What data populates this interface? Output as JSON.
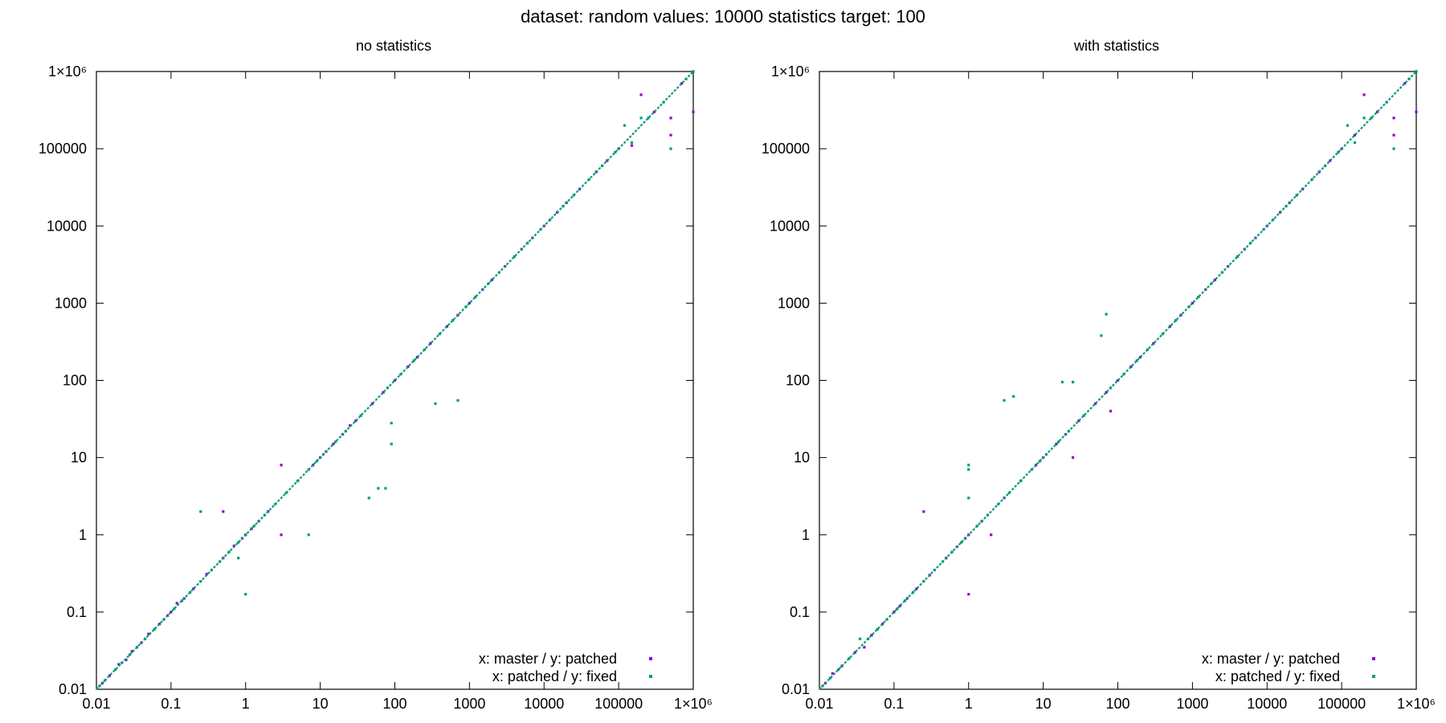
{
  "figure": {
    "title": "dataset: random  values: 10000  statistics target: 100"
  },
  "colors": {
    "series_master_patched": "#9400d3",
    "series_patched_fixed": "#009e73"
  },
  "chart_data": [
    {
      "type": "scatter",
      "title": "no statistics",
      "xscale": "log",
      "yscale": "log",
      "xlim": [
        0.01,
        1000000
      ],
      "ylim": [
        0.01,
        1000000
      ],
      "xticks": [
        0.01,
        0.1,
        1,
        10,
        100,
        1000,
        10000,
        100000,
        1000000
      ],
      "yticks": [
        0.01,
        0.1,
        1,
        10,
        100,
        1000,
        10000,
        100000,
        1000000
      ],
      "tick_labels": [
        "0.01",
        "0.1",
        "1",
        "10",
        "100",
        "1000",
        "10000",
        "100000",
        "1×10⁶"
      ],
      "legend_position": "bottom-right",
      "series": [
        {
          "name": "x: master / y: patched",
          "color": "#9400d3",
          "points": [
            [
              0.012,
              0.012
            ],
            [
              0.015,
              0.015
            ],
            [
              0.02,
              0.021
            ],
            [
              0.025,
              0.024
            ],
            [
              0.03,
              0.031
            ],
            [
              0.04,
              0.04
            ],
            [
              0.05,
              0.052
            ],
            [
              0.07,
              0.07
            ],
            [
              0.09,
              0.09
            ],
            [
              0.1,
              0.1
            ],
            [
              0.12,
              0.13
            ],
            [
              0.15,
              0.15
            ],
            [
              0.2,
              0.2
            ],
            [
              0.3,
              0.31
            ],
            [
              0.5,
              0.5
            ],
            [
              0.7,
              0.72
            ],
            [
              0.9,
              0.9
            ],
            [
              1,
              1
            ],
            [
              1.2,
              1.2
            ],
            [
              1.5,
              1.5
            ],
            [
              2,
              2
            ],
            [
              0.5,
              2
            ],
            [
              3,
              1
            ],
            [
              3,
              8
            ],
            [
              5,
              5
            ],
            [
              8,
              8
            ],
            [
              10,
              10
            ],
            [
              12,
              12
            ],
            [
              15,
              15
            ],
            [
              20,
              20
            ],
            [
              25,
              26
            ],
            [
              30,
              30
            ],
            [
              50,
              50
            ],
            [
              70,
              70
            ],
            [
              100,
              100
            ],
            [
              150,
              150
            ],
            [
              200,
              200
            ],
            [
              300,
              300
            ],
            [
              500,
              500
            ],
            [
              700,
              700
            ],
            [
              1000,
              1000
            ],
            [
              1500,
              1500
            ],
            [
              2000,
              2000
            ],
            [
              3000,
              3000
            ],
            [
              5000,
              5000
            ],
            [
              7000,
              7000
            ],
            [
              10000,
              10000
            ],
            [
              15000,
              15000
            ],
            [
              20000,
              20000
            ],
            [
              30000,
              30000
            ],
            [
              50000,
              50000
            ],
            [
              70000,
              70000
            ],
            [
              100000,
              100000
            ],
            [
              150000,
              110000
            ],
            [
              200000,
              500000
            ],
            [
              300000,
              300000
            ],
            [
              500000,
              250000
            ],
            [
              500000,
              150000
            ],
            [
              700000,
              700000
            ],
            [
              1000000,
              1000000
            ],
            [
              1000000,
              300000
            ]
          ]
        },
        {
          "name": "x: patched / y: fixed",
          "color": "#009e73",
          "points": [
            [
              0.011,
              0.011
            ],
            [
              0.013,
              0.013
            ],
            [
              0.018,
              0.018
            ],
            [
              0.022,
              0.022
            ],
            [
              0.028,
              0.028
            ],
            [
              0.035,
              0.035
            ],
            [
              0.045,
              0.045
            ],
            [
              0.06,
              0.06
            ],
            [
              0.08,
              0.08
            ],
            [
              0.11,
              0.11
            ],
            [
              0.14,
              0.14
            ],
            [
              0.18,
              0.18
            ],
            [
              0.25,
              2
            ],
            [
              0.25,
              0.25
            ],
            [
              0.35,
              0.35
            ],
            [
              0.45,
              0.45
            ],
            [
              0.6,
              0.6
            ],
            [
              0.8,
              0.5
            ],
            [
              0.8,
              0.8
            ],
            [
              1,
              0.17
            ],
            [
              1,
              1
            ],
            [
              1.3,
              1.3
            ],
            [
              1.8,
              1.8
            ],
            [
              2.5,
              2.5
            ],
            [
              3.5,
              3.5
            ],
            [
              5,
              5
            ],
            [
              7,
              1
            ],
            [
              7,
              7
            ],
            [
              9,
              9
            ],
            [
              11,
              11
            ],
            [
              16,
              16
            ],
            [
              22,
              22
            ],
            [
              35,
              35
            ],
            [
              45,
              3
            ],
            [
              60,
              4
            ],
            [
              75,
              4
            ],
            [
              80,
              80
            ],
            [
              90,
              15
            ],
            [
              90,
              28
            ],
            [
              120,
              120
            ],
            [
              180,
              180
            ],
            [
              250,
              250
            ],
            [
              350,
              50
            ],
            [
              400,
              400
            ],
            [
              700,
              55
            ],
            [
              600,
              600
            ],
            [
              900,
              900
            ],
            [
              1200,
              1200
            ],
            [
              1800,
              1800
            ],
            [
              2500,
              2500
            ],
            [
              4000,
              4000
            ],
            [
              6000,
              6000
            ],
            [
              9000,
              9000
            ],
            [
              12000,
              12000
            ],
            [
              18000,
              18000
            ],
            [
              25000,
              25000
            ],
            [
              40000,
              40000
            ],
            [
              60000,
              60000
            ],
            [
              90000,
              90000
            ],
            [
              120000,
              200000
            ],
            [
              150000,
              120000
            ],
            [
              200000,
              250000
            ],
            [
              250000,
              250000
            ],
            [
              400000,
              400000
            ],
            [
              500000,
              100000
            ],
            [
              800000,
              800000
            ],
            [
              1000000,
              1000000
            ]
          ]
        }
      ]
    },
    {
      "type": "scatter",
      "title": "with statistics",
      "xscale": "log",
      "yscale": "log",
      "xlim": [
        0.01,
        1000000
      ],
      "ylim": [
        0.01,
        1000000
      ],
      "xticks": [
        0.01,
        0.1,
        1,
        10,
        100,
        1000,
        10000,
        100000,
        1000000
      ],
      "yticks": [
        0.01,
        0.1,
        1,
        10,
        100,
        1000,
        10000,
        100000,
        1000000
      ],
      "tick_labels": [
        "0.01",
        "0.1",
        "1",
        "10",
        "100",
        "1000",
        "10000",
        "100000",
        "1×10⁶"
      ],
      "legend_position": "bottom-right",
      "series": [
        {
          "name": "x: master / y: patched",
          "color": "#9400d3",
          "points": [
            [
              0.012,
              0.012
            ],
            [
              0.015,
              0.016
            ],
            [
              0.02,
              0.02
            ],
            [
              0.03,
              0.03
            ],
            [
              0.04,
              0.035
            ],
            [
              0.05,
              0.05
            ],
            [
              0.07,
              0.07
            ],
            [
              0.1,
              0.1
            ],
            [
              0.12,
              0.12
            ],
            [
              0.15,
              0.15
            ],
            [
              0.2,
              0.2
            ],
            [
              0.25,
              2
            ],
            [
              0.3,
              0.3
            ],
            [
              0.5,
              0.5
            ],
            [
              0.7,
              0.7
            ],
            [
              0.9,
              0.9
            ],
            [
              1,
              1
            ],
            [
              1,
              0.17
            ],
            [
              1.5,
              1.5
            ],
            [
              2,
              1
            ],
            [
              3,
              3
            ],
            [
              5,
              5
            ],
            [
              8,
              8
            ],
            [
              10,
              10
            ],
            [
              15,
              15
            ],
            [
              20,
              20
            ],
            [
              25,
              10
            ],
            [
              30,
              30
            ],
            [
              50,
              50
            ],
            [
              70,
              70
            ],
            [
              80,
              40
            ],
            [
              100,
              100
            ],
            [
              150,
              150
            ],
            [
              200,
              200
            ],
            [
              300,
              300
            ],
            [
              500,
              500
            ],
            [
              700,
              700
            ],
            [
              1000,
              1000
            ],
            [
              1500,
              1500
            ],
            [
              2000,
              2000
            ],
            [
              3000,
              3000
            ],
            [
              5000,
              5000
            ],
            [
              7000,
              7000
            ],
            [
              10000,
              10000
            ],
            [
              15000,
              15000
            ],
            [
              20000,
              20000
            ],
            [
              30000,
              30000
            ],
            [
              50000,
              50000
            ],
            [
              70000,
              70000
            ],
            [
              100000,
              100000
            ],
            [
              150000,
              150000
            ],
            [
              200000,
              500000
            ],
            [
              300000,
              300000
            ],
            [
              500000,
              250000
            ],
            [
              500000,
              150000
            ],
            [
              700000,
              700000
            ],
            [
              1000000,
              1000000
            ],
            [
              1000000,
              300000
            ]
          ]
        },
        {
          "name": "x: patched / y: fixed",
          "color": "#009e73",
          "points": [
            [
              0.011,
              0.011
            ],
            [
              0.014,
              0.014
            ],
            [
              0.018,
              0.018
            ],
            [
              0.025,
              0.025
            ],
            [
              0.035,
              0.045
            ],
            [
              0.045,
              0.045
            ],
            [
              0.06,
              0.06
            ],
            [
              0.08,
              0.08
            ],
            [
              0.11,
              0.11
            ],
            [
              0.14,
              0.14
            ],
            [
              0.18,
              0.18
            ],
            [
              0.25,
              0.25
            ],
            [
              0.35,
              0.35
            ],
            [
              0.45,
              0.45
            ],
            [
              0.6,
              0.6
            ],
            [
              0.8,
              0.8
            ],
            [
              1,
              8
            ],
            [
              1,
              7
            ],
            [
              1,
              3
            ],
            [
              1.3,
              1.3
            ],
            [
              1.8,
              1.8
            ],
            [
              2.5,
              2.5
            ],
            [
              3,
              55
            ],
            [
              4,
              62
            ],
            [
              3.5,
              3.5
            ],
            [
              5,
              5
            ],
            [
              7,
              7
            ],
            [
              9,
              9
            ],
            [
              11,
              11
            ],
            [
              16,
              16
            ],
            [
              18,
              95
            ],
            [
              25,
              95
            ],
            [
              22,
              22
            ],
            [
              35,
              35
            ],
            [
              60,
              380
            ],
            [
              70,
              720
            ],
            [
              80,
              80
            ],
            [
              120,
              120
            ],
            [
              180,
              180
            ],
            [
              250,
              250
            ],
            [
              400,
              400
            ],
            [
              600,
              600
            ],
            [
              900,
              900
            ],
            [
              1200,
              1200
            ],
            [
              1800,
              1800
            ],
            [
              2500,
              2500
            ],
            [
              4000,
              4000
            ],
            [
              6000,
              6000
            ],
            [
              9000,
              9000
            ],
            [
              12000,
              12000
            ],
            [
              18000,
              18000
            ],
            [
              25000,
              25000
            ],
            [
              40000,
              40000
            ],
            [
              60000,
              60000
            ],
            [
              90000,
              90000
            ],
            [
              120000,
              200000
            ],
            [
              150000,
              120000
            ],
            [
              200000,
              250000
            ],
            [
              250000,
              250000
            ],
            [
              400000,
              400000
            ],
            [
              500000,
              100000
            ],
            [
              800000,
              800000
            ],
            [
              1000000,
              1000000
            ]
          ]
        }
      ]
    }
  ]
}
